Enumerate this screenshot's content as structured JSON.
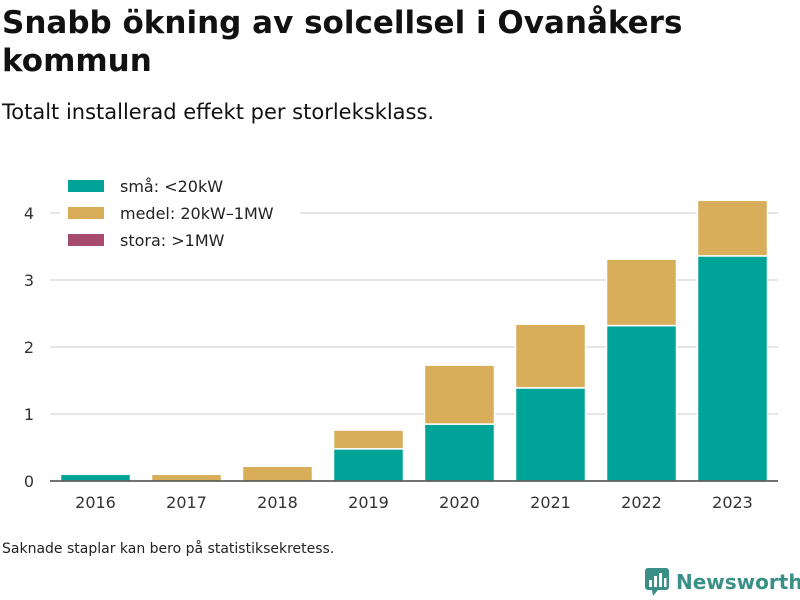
{
  "title": "Snabb ökning av solcellsel i Ovanåkers kommun",
  "subtitle": "Totalt installerad effekt per storleksklass.",
  "footnote": "Saknade staplar kan bero på statistiksekretess.",
  "brand": "Newsworthy",
  "chart_data": {
    "type": "bar",
    "stacked": true,
    "categories": [
      "2016",
      "2017",
      "2018",
      "2019",
      "2020",
      "2021",
      "2022",
      "2023"
    ],
    "series": [
      {
        "name": "små: <20kW",
        "color": "#00a398",
        "values": [
          0.1,
          0,
          0,
          0.48,
          0.85,
          1.39,
          2.32,
          3.36
        ]
      },
      {
        "name": "medel: 20kW–1MW",
        "color": "#d9ae5b",
        "values": [
          0,
          0.1,
          0.22,
          0.28,
          0.88,
          0.95,
          0.99,
          0.83
        ]
      },
      {
        "name": "stora: >1MW",
        "color": "#a64a6e",
        "values": [
          0,
          0,
          0,
          0,
          0,
          0,
          0,
          0
        ]
      }
    ],
    "yticks": [
      0,
      1,
      2,
      3,
      4
    ],
    "ylim": [
      0,
      4.3
    ],
    "grid": true,
    "legend_position": "top-left"
  }
}
